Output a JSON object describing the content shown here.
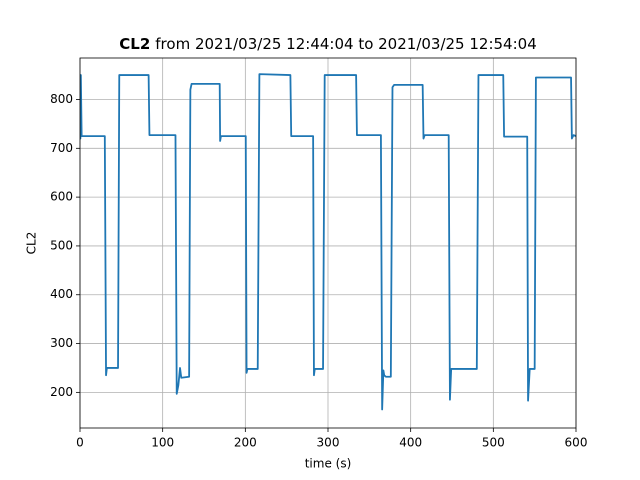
{
  "chart_data": {
    "type": "line",
    "title_parts": [
      "CL2",
      "from 2021/03/25 12:44:04 to 2021/03/25 12:54:04"
    ],
    "x_label": "time (s)",
    "y_label": "CL2",
    "xlim": [
      0,
      600
    ],
    "xticks": [
      0,
      100,
      200,
      300,
      400,
      500,
      600
    ],
    "ylim": [
      127,
      885
    ],
    "yticks": [
      200,
      300,
      400,
      500,
      600,
      700,
      800
    ],
    "grid": true,
    "series": [
      {
        "color": "#1f77b4",
        "x": [
          0,
          0.5,
          1,
          2,
          30,
          31.5,
          32.5,
          46,
          47.5,
          83,
          84,
          115.5,
          117,
          119,
          121,
          122.5,
          132,
          133.5,
          135,
          169,
          169.5,
          170.5,
          200.5,
          201.5,
          202.5,
          215,
          217,
          254.5,
          255.5,
          282,
          283,
          284,
          294,
          296,
          334,
          335,
          364,
          365.5,
          367,
          368,
          370,
          376,
          378,
          380,
          414.5,
          415.5,
          417,
          446,
          447.5,
          449,
          480,
          482,
          512,
          513,
          541,
          542,
          544,
          550,
          551.5,
          594,
          595,
          597,
          600
        ],
        "values": [
          850,
          720,
          850,
          725,
          725,
          235,
          250,
          250,
          850,
          850,
          727,
          727,
          197,
          215,
          250,
          230,
          232,
          820,
          832,
          832,
          715,
          725,
          725,
          240,
          248,
          248,
          852,
          850,
          725,
          725,
          235,
          248,
          248,
          850,
          850,
          727,
          727,
          165,
          245,
          235,
          232,
          232,
          825,
          830,
          830,
          720,
          727,
          727,
          185,
          248,
          248,
          850,
          850,
          724,
          724,
          183,
          248,
          248,
          845,
          845,
          720,
          727,
          725
        ]
      }
    ]
  }
}
